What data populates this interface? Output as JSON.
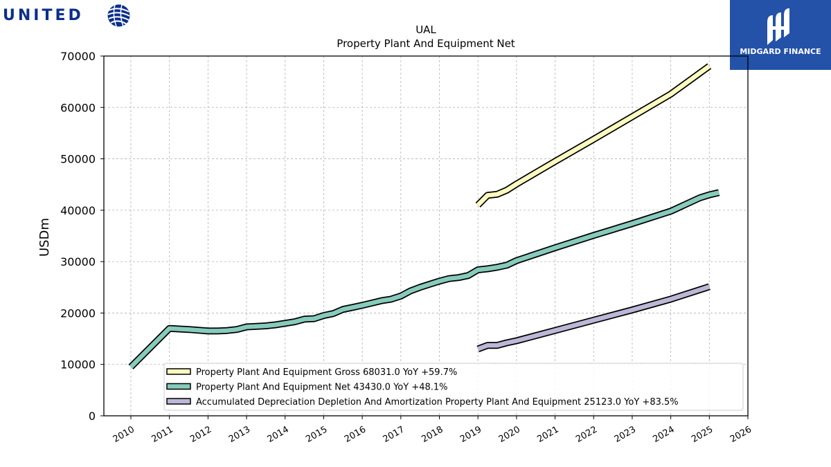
{
  "brand": {
    "left_name": "UNITED",
    "right_name": "MIDGARD FINANCE"
  },
  "colors": {
    "gross": "#fbfbc0",
    "net": "#86cbbb",
    "accum": "#bbb7d6",
    "united_blue": "#0a2f8c",
    "midgard_bg": "#2352a8"
  },
  "chart_data": {
    "type": "line",
    "title": "UAL",
    "subtitle": "Property Plant And Equipment Net",
    "ylabel": "USDm",
    "xlabel": "",
    "ylim": [
      0,
      70000
    ],
    "xlim": [
      2009.3,
      2026.0
    ],
    "yticks": [
      0,
      10000,
      20000,
      30000,
      40000,
      50000,
      60000,
      70000
    ],
    "xticks": [
      "2010",
      "2011",
      "2012",
      "2013",
      "2014",
      "2015",
      "2016",
      "2017",
      "2018",
      "2019",
      "2020",
      "2021",
      "2022",
      "2023",
      "2024",
      "2025",
      "2026"
    ],
    "grid": true,
    "legend_position": "bottom",
    "series": [
      {
        "name": "Property Plant And Equipment Gross",
        "legend": "Property Plant And Equipment Gross  68031.0 YoY +59.7%",
        "color_key": "gross",
        "points": [
          [
            2019.0,
            41000
          ],
          [
            2019.25,
            42900
          ],
          [
            2019.5,
            43100
          ],
          [
            2019.75,
            43900
          ],
          [
            2020.0,
            45100
          ],
          [
            2021.0,
            49500
          ],
          [
            2022.0,
            53800
          ],
          [
            2023.0,
            58200
          ],
          [
            2024.0,
            62600
          ],
          [
            2025.0,
            68031
          ]
        ]
      },
      {
        "name": "Property Plant And Equipment Net",
        "legend": "Property Plant And Equipment Net  43430.0 YoY +48.1%",
        "color_key": "net",
        "points": [
          [
            2010.0,
            9500
          ],
          [
            2011.0,
            17000
          ],
          [
            2011.5,
            16800
          ],
          [
            2012.0,
            16500
          ],
          [
            2012.25,
            16500
          ],
          [
            2012.5,
            16600
          ],
          [
            2012.75,
            16800
          ],
          [
            2013.0,
            17300
          ],
          [
            2013.5,
            17500
          ],
          [
            2013.75,
            17700
          ],
          [
            2014.0,
            18000
          ],
          [
            2014.25,
            18300
          ],
          [
            2014.5,
            18800
          ],
          [
            2014.75,
            18900
          ],
          [
            2015.0,
            19500
          ],
          [
            2015.25,
            19900
          ],
          [
            2015.5,
            20700
          ],
          [
            2015.75,
            21100
          ],
          [
            2016.0,
            21500
          ],
          [
            2016.5,
            22400
          ],
          [
            2016.75,
            22700
          ],
          [
            2017.0,
            23300
          ],
          [
            2017.25,
            24300
          ],
          [
            2017.5,
            25000
          ],
          [
            2017.75,
            25600
          ],
          [
            2018.0,
            26200
          ],
          [
            2018.25,
            26700
          ],
          [
            2018.5,
            26900
          ],
          [
            2018.75,
            27300
          ],
          [
            2019.0,
            28400
          ],
          [
            2019.25,
            28600
          ],
          [
            2019.5,
            28900
          ],
          [
            2019.75,
            29300
          ],
          [
            2020.0,
            30200
          ],
          [
            2021.0,
            32700
          ],
          [
            2022.0,
            35100
          ],
          [
            2023.0,
            37400
          ],
          [
            2024.0,
            39800
          ],
          [
            2024.75,
            42400
          ],
          [
            2025.0,
            43000
          ],
          [
            2025.25,
            43430
          ]
        ]
      },
      {
        "name": "Accumulated Depreciation Depletion And Amortization Property Plant And Equipment",
        "legend": "Accumulated Depreciation Depletion And Amortization Property Plant And Equipment  25123.0 YoY +83.5%",
        "color_key": "accum",
        "points": [
          [
            2019.0,
            13000
          ],
          [
            2019.25,
            13700
          ],
          [
            2019.5,
            13700
          ],
          [
            2019.75,
            14200
          ],
          [
            2020.0,
            14600
          ],
          [
            2021.0,
            16600
          ],
          [
            2022.0,
            18600
          ],
          [
            2023.0,
            20600
          ],
          [
            2024.0,
            22700
          ],
          [
            2025.0,
            25123
          ]
        ]
      }
    ]
  }
}
